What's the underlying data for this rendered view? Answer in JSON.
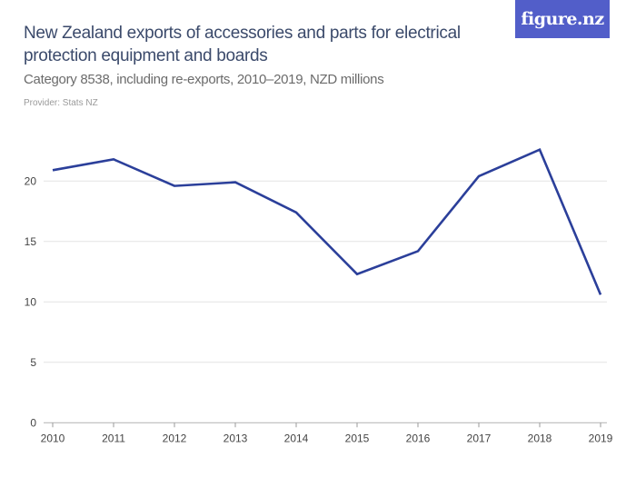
{
  "header": {
    "title": "New Zealand exports of accessories and parts for electrical protection equipment and boards",
    "subtitle": "Category 8538, including re-exports, 2010–2019, NZD millions",
    "provider": "Provider: Stats NZ",
    "logo": "figure.nz"
  },
  "colors": {
    "line": "#2b3f9a",
    "grid": "#e4e4e4",
    "logo_bg": "#525ec9"
  },
  "chart_data": {
    "type": "line",
    "title": "New Zealand exports of accessories and parts for electrical protection equipment and boards",
    "subtitle": "Category 8538, including re-exports, 2010–2019, NZD millions",
    "xlabel": "",
    "ylabel": "",
    "categories": [
      "2010",
      "2011",
      "2012",
      "2013",
      "2014",
      "2015",
      "2016",
      "2017",
      "2018",
      "2019"
    ],
    "values": [
      20.9,
      21.8,
      19.6,
      19.9,
      17.4,
      12.3,
      14.2,
      20.4,
      22.6,
      10.6
    ],
    "ylim": [
      0,
      25
    ],
    "yticks": [
      "0",
      "5",
      "10",
      "15",
      "20"
    ],
    "grid": true,
    "legend": "none"
  }
}
